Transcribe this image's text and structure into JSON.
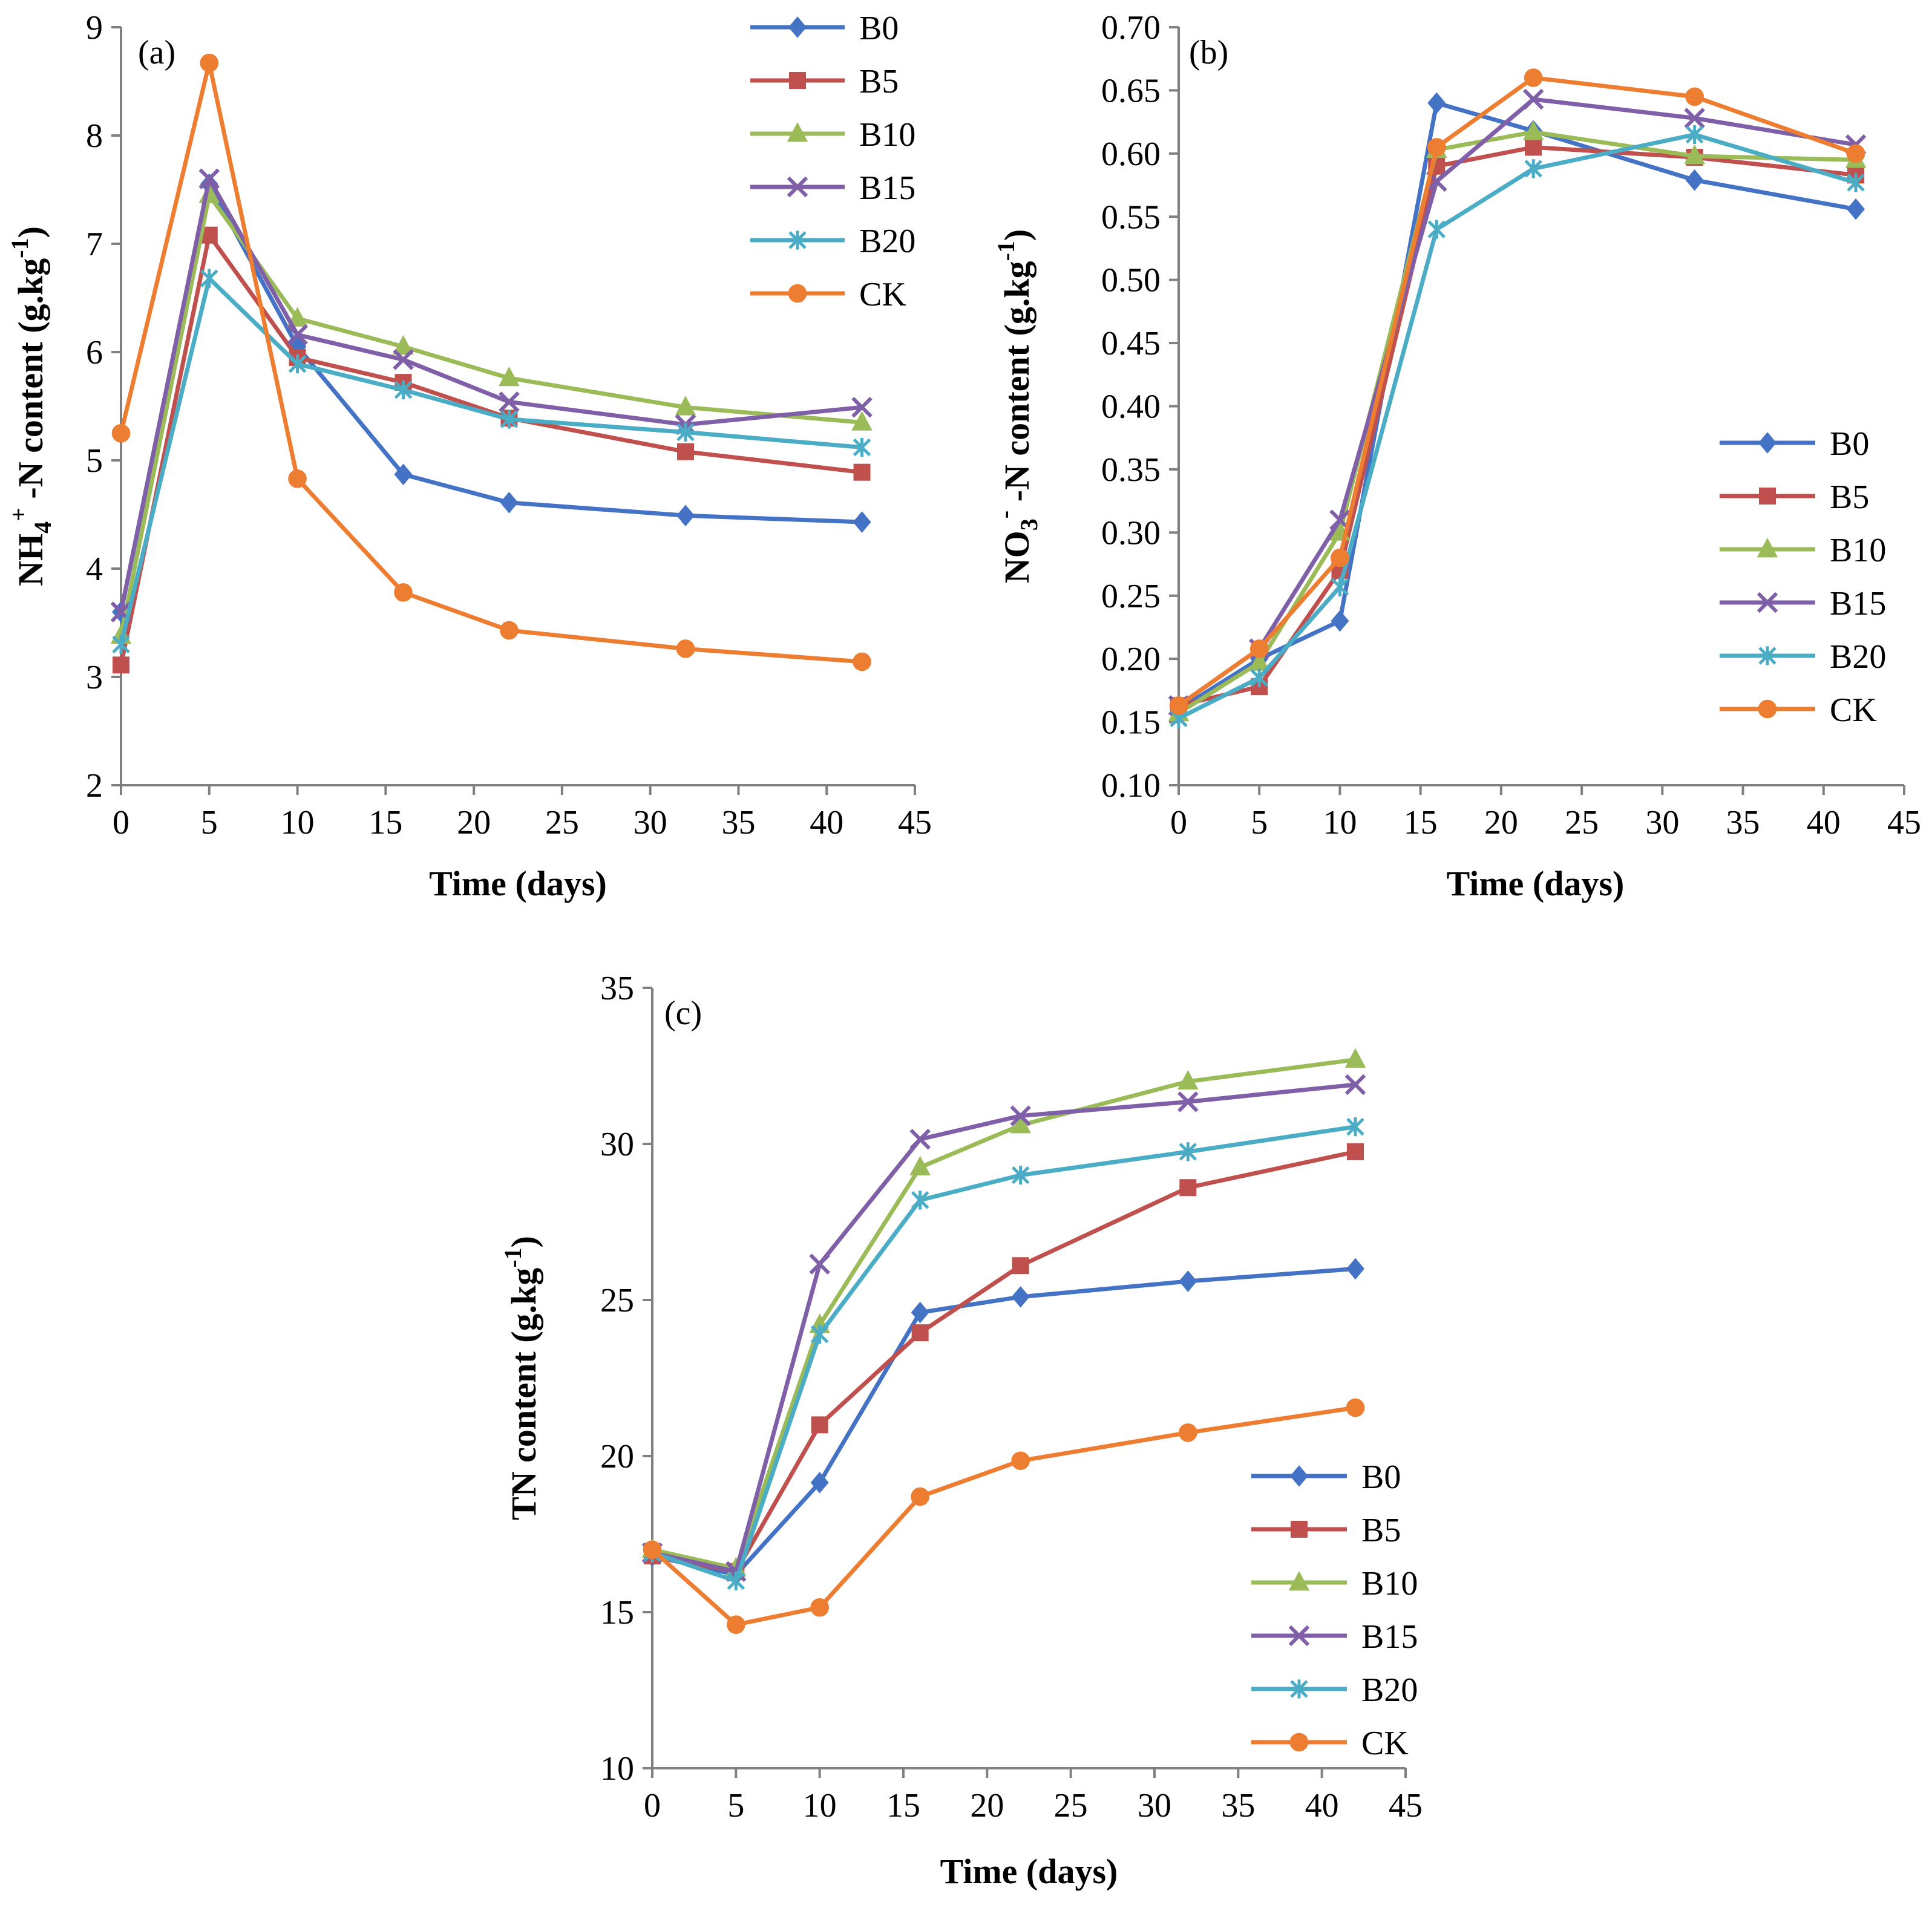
{
  "colors": {
    "B0": "#4472C4",
    "B5": "#C0504D",
    "B10": "#9BBB59",
    "B15": "#7F5FA8",
    "B20": "#4BACC6",
    "CK": "#ED7D31"
  },
  "chart_data": [
    {
      "type": "line",
      "panel_label": "(a)",
      "xlabel": "Time (days)",
      "ylabel": {
        "main": "NH",
        "sub": "4",
        "sup": "+",
        "rest": " -N content (g.kg",
        "unit_sup": "-1",
        "close": ")"
      },
      "xlim": [
        0,
        45
      ],
      "ylim": [
        2,
        9
      ],
      "xticks": [
        0,
        5,
        10,
        15,
        20,
        25,
        30,
        35,
        40,
        45
      ],
      "yticks": [
        2,
        3,
        4,
        5,
        6,
        7,
        8,
        9
      ],
      "ytick_labels": [
        "2",
        "3",
        "4",
        "5",
        "6",
        "7",
        "8",
        "9"
      ],
      "x": [
        0,
        5,
        10,
        16,
        22,
        32,
        42
      ],
      "legend_position": "top-right",
      "series": [
        {
          "name": "B0",
          "marker": "diamond",
          "values": [
            3.6,
            7.55,
            6.05,
            4.87,
            4.61,
            4.49,
            4.43
          ]
        },
        {
          "name": "B5",
          "marker": "square",
          "values": [
            3.11,
            7.08,
            5.95,
            5.72,
            5.39,
            5.08,
            4.89
          ]
        },
        {
          "name": "B10",
          "marker": "triangle",
          "values": [
            3.38,
            7.45,
            6.31,
            6.05,
            5.76,
            5.49,
            5.35
          ]
        },
        {
          "name": "B15",
          "marker": "x",
          "values": [
            3.6,
            7.6,
            6.16,
            5.93,
            5.54,
            5.33,
            5.49
          ]
        },
        {
          "name": "B20",
          "marker": "asterisk",
          "values": [
            3.3,
            6.68,
            5.89,
            5.65,
            5.38,
            5.26,
            5.12
          ]
        },
        {
          "name": "CK",
          "marker": "circle",
          "values": [
            5.25,
            8.67,
            4.83,
            3.78,
            3.43,
            3.26,
            3.14
          ]
        }
      ]
    },
    {
      "type": "line",
      "panel_label": "(b)",
      "xlabel": "Time (days)",
      "ylabel": {
        "main": "NO",
        "sub": "3",
        "sup": "-",
        "rest": " -N content (g.kg",
        "unit_sup": "-1",
        "close": ")"
      },
      "xlim": [
        0,
        45
      ],
      "ylim": [
        0.1,
        0.7
      ],
      "xticks": [
        0,
        5,
        10,
        15,
        20,
        25,
        30,
        35,
        40,
        45
      ],
      "yticks": [
        0.1,
        0.15,
        0.2,
        0.25,
        0.3,
        0.35,
        0.4,
        0.45,
        0.5,
        0.55,
        0.6,
        0.65,
        0.7
      ],
      "ytick_labels": [
        "0.10",
        "0.15",
        "0.20",
        "0.25",
        "0.30",
        "0.35",
        "0.40",
        "0.45",
        "0.50",
        "0.55",
        "0.60",
        "0.65",
        "0.70"
      ],
      "x": [
        0,
        5,
        10,
        16,
        22,
        32,
        42
      ],
      "legend_position": "right",
      "series": [
        {
          "name": "B0",
          "marker": "diamond",
          "values": [
            0.16,
            0.2,
            0.23,
            0.64,
            0.618,
            0.579,
            0.556
          ]
        },
        {
          "name": "B5",
          "marker": "square",
          "values": [
            0.163,
            0.178,
            0.27,
            0.59,
            0.605,
            0.597,
            0.583
          ]
        },
        {
          "name": "B10",
          "marker": "triangle",
          "values": [
            0.157,
            0.197,
            0.3,
            0.603,
            0.617,
            0.598,
            0.595
          ]
        },
        {
          "name": "B15",
          "marker": "x",
          "values": [
            0.163,
            0.208,
            0.31,
            0.578,
            0.643,
            0.628,
            0.607
          ]
        },
        {
          "name": "B20",
          "marker": "asterisk",
          "values": [
            0.153,
            0.185,
            0.257,
            0.54,
            0.588,
            0.615,
            0.577
          ]
        },
        {
          "name": "CK",
          "marker": "circle",
          "values": [
            0.163,
            0.208,
            0.28,
            0.605,
            0.66,
            0.645,
            0.6
          ]
        }
      ]
    },
    {
      "type": "line",
      "panel_label": "(c)",
      "xlabel": "Time (days)",
      "ylabel": {
        "main": "TN content (g.kg",
        "unit_sup": "-1",
        "close": ")"
      },
      "xlim": [
        0,
        45
      ],
      "ylim": [
        10,
        35
      ],
      "xticks": [
        0,
        5,
        10,
        15,
        20,
        25,
        30,
        35,
        40,
        45
      ],
      "yticks": [
        10,
        15,
        20,
        25,
        30,
        35
      ],
      "ytick_labels": [
        "10",
        "15",
        "20",
        "25",
        "30",
        "35"
      ],
      "x": [
        0,
        5,
        10,
        16,
        22,
        32,
        42
      ],
      "legend_position": "bottom-right",
      "series": [
        {
          "name": "B0",
          "marker": "diamond",
          "values": [
            16.8,
            16.2,
            19.15,
            24.6,
            25.1,
            25.6,
            26.0
          ]
        },
        {
          "name": "B5",
          "marker": "square",
          "values": [
            16.8,
            16.3,
            21.0,
            23.95,
            26.1,
            28.6,
            29.75
          ]
        },
        {
          "name": "B10",
          "marker": "triangle",
          "values": [
            17.0,
            16.4,
            24.2,
            29.25,
            30.6,
            32.0,
            32.7
          ]
        },
        {
          "name": "B15",
          "marker": "x",
          "values": [
            16.9,
            16.3,
            26.15,
            30.15,
            30.9,
            31.35,
            31.9
          ]
        },
        {
          "name": "B20",
          "marker": "asterisk",
          "values": [
            16.9,
            16.0,
            23.9,
            28.2,
            29.0,
            29.75,
            30.55
          ]
        },
        {
          "name": "CK",
          "marker": "circle",
          "values": [
            17.0,
            14.6,
            15.15,
            18.7,
            19.85,
            20.75,
            21.55
          ]
        }
      ]
    }
  ]
}
